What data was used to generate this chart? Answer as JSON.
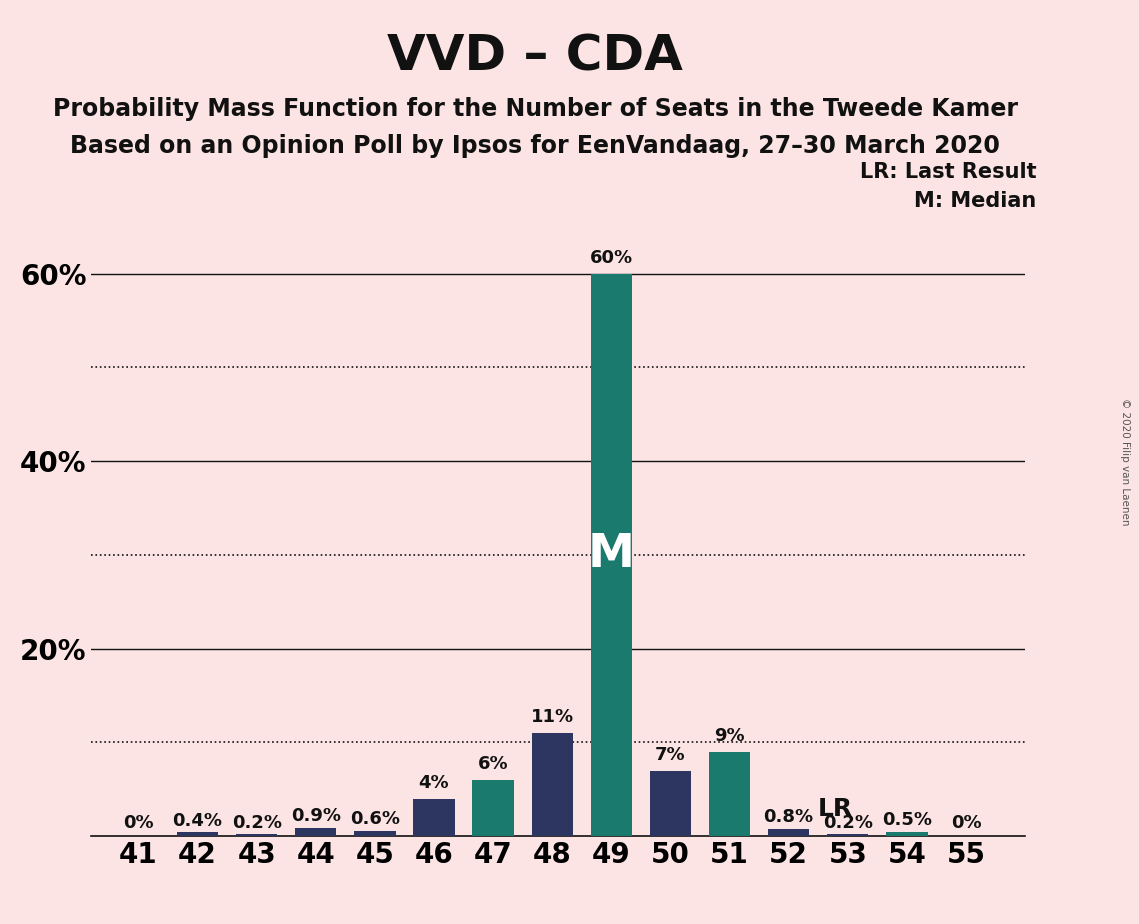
{
  "title": "VVD – CDA",
  "subtitle1": "Probability Mass Function for the Number of Seats in the Tweede Kamer",
  "subtitle2": "Based on an Opinion Poll by Ipsos for EenVandaag, 27–30 March 2020",
  "copyright": "© 2020 Filip van Laenen",
  "seats": [
    41,
    42,
    43,
    44,
    45,
    46,
    47,
    48,
    49,
    50,
    51,
    52,
    53,
    54,
    55
  ],
  "values": [
    0.0,
    0.4,
    0.2,
    0.9,
    0.6,
    4.0,
    6.0,
    11.0,
    60.0,
    7.0,
    9.0,
    0.8,
    0.2,
    0.5,
    0.0
  ],
  "bar_colors": [
    "#2d3561",
    "#2d3561",
    "#2d3561",
    "#2d3561",
    "#2d3561",
    "#2d3561",
    "#1a7a6e",
    "#2d3561",
    "#1a7a6e",
    "#2d3561",
    "#1a7a6e",
    "#2d3561",
    "#2d3561",
    "#1a7a6e",
    "#2d3561"
  ],
  "labels": [
    "0%",
    "0.4%",
    "0.2%",
    "0.9%",
    "0.6%",
    "4%",
    "6%",
    "11%",
    "60%",
    "7%",
    "9%",
    "0.8%",
    "0.2%",
    "0.5%",
    "0%"
  ],
  "median_seat": 49,
  "lr_seat": 52,
  "background_color": "#fce4e4",
  "navy_color": "#2d3561",
  "teal_color": "#1a7a6e",
  "ylim_max": 67,
  "yticks": [
    20,
    40,
    60
  ],
  "ytick_labels": [
    "20%",
    "40%",
    "60%"
  ],
  "solid_lines": [
    20,
    40,
    60
  ],
  "dotted_lines": [
    10,
    30,
    50
  ],
  "legend_lr": "LR: Last Result",
  "legend_m": "M: Median",
  "title_fontsize": 36,
  "subtitle_fontsize": 17,
  "label_fontsize": 13,
  "tick_fontsize": 20
}
